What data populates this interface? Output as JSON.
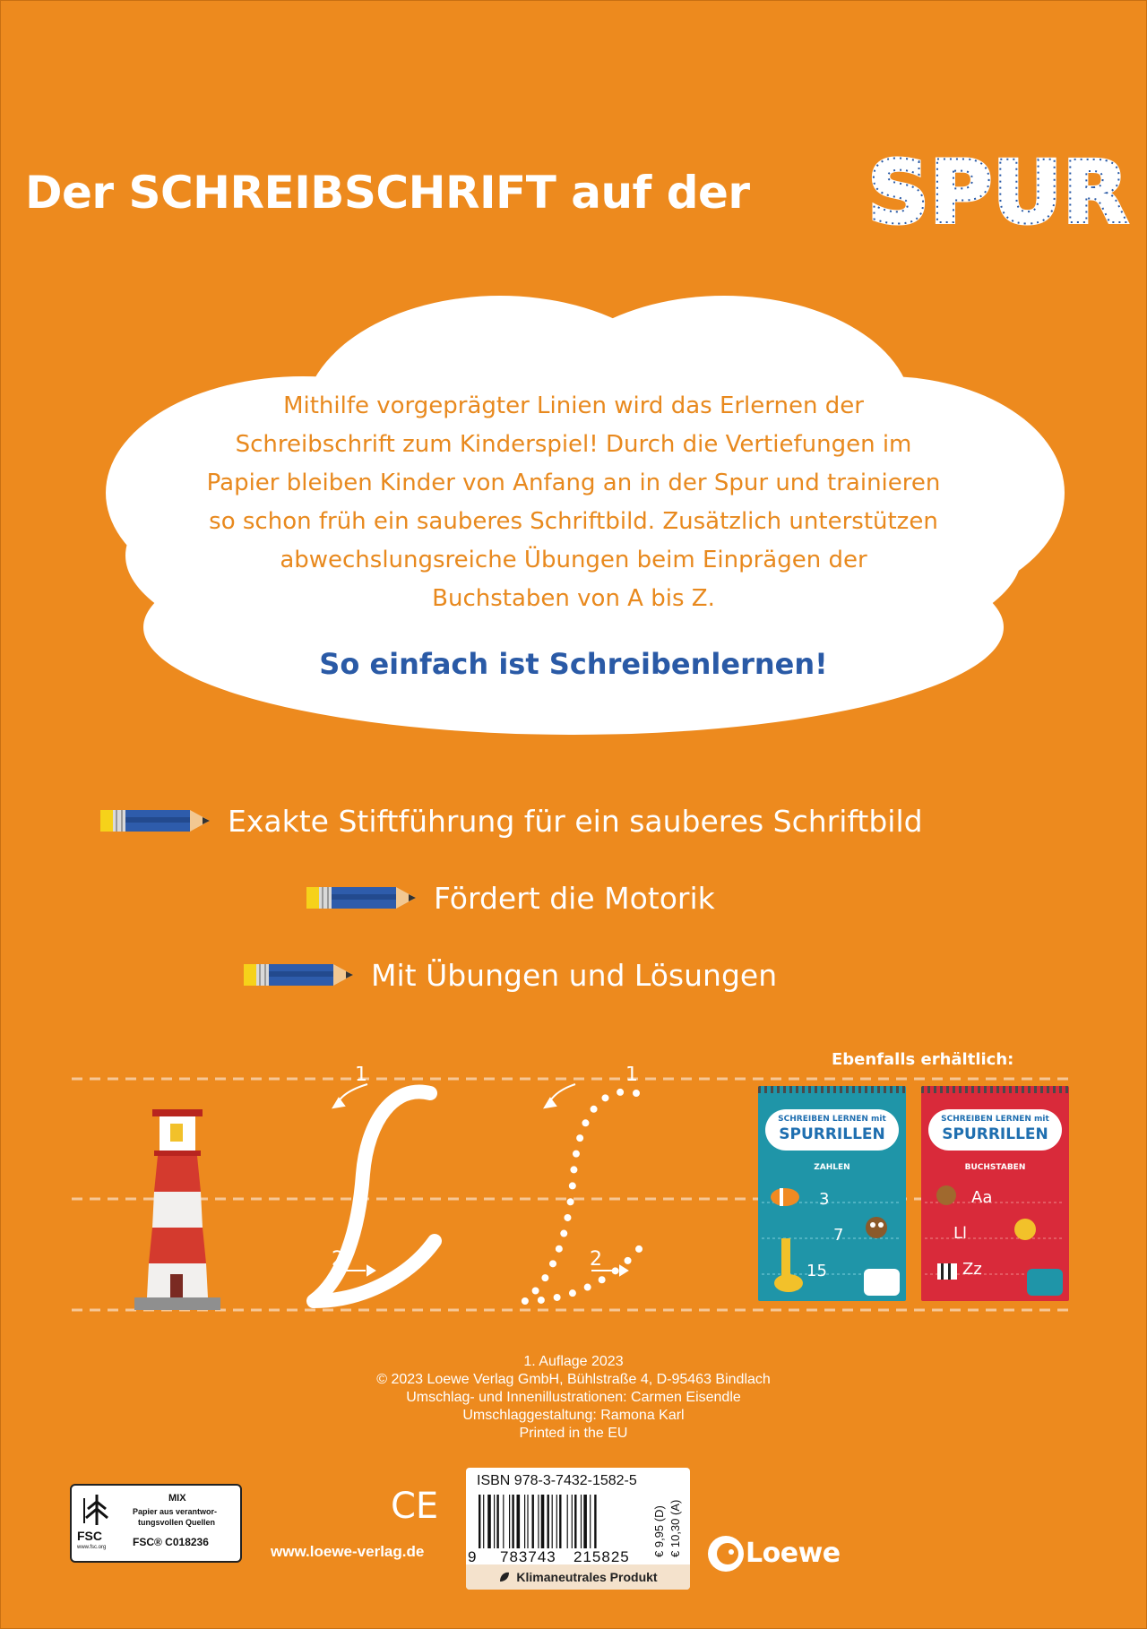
{
  "title": {
    "normal": "Der SCHREIBSCHRIFT auf der",
    "highlight": "SPUR"
  },
  "blurb": {
    "lines": [
      "Mithilfe vorgeprägter Linien wird das Erlernen der",
      "Schreibschrift zum Kinderspiel! Durch die Vertiefungen im",
      "Papier bleiben Kinder von Anfang an in der Spur und trainieren",
      "so schon früh ein sauberes Schriftbild. Zusätzlich unterstützen",
      "abwechslungsreiche Übungen beim Einprägen der",
      "Buchstaben von A bis Z."
    ],
    "tagline": "So einfach ist Schreibenlernen!"
  },
  "features": [
    "Exakte Stiftführung für ein sauberes Schriftbild",
    "Fördert die Motorik",
    "Mit Übungen und Lösungen"
  ],
  "practice": {
    "stroke1": "1",
    "stroke2": "2",
    "stroke1b": "1",
    "stroke2b": "2"
  },
  "also_available": {
    "label": "Ebenfalls erhältlich:",
    "books": [
      {
        "top": "SCHREIBEN LERNEN mit",
        "main": "SPURRILLEN",
        "sub": "ZAHLEN",
        "main_color": "#1f6fb0"
      },
      {
        "top": "SCHREIBEN LERNEN mit",
        "main": "SPURRILLEN",
        "sub": "BUCHSTABEN",
        "main_color": "#1f6fb0"
      }
    ],
    "book1_digits": [
      "3",
      "7",
      "15"
    ],
    "book2_letters": [
      "Aa",
      "Ll",
      "Zz"
    ]
  },
  "imprint": [
    "1. Auflage 2023",
    "© 2023 Loewe Verlag GmbH, Bühlstraße 4, D-95463 Bindlach",
    "Umschlag- und Innenillustrationen: Carmen Eisendle",
    "Umschlaggestaltung: Ramona Karl",
    "Printed in the EU"
  ],
  "fsc": {
    "mix": "MIX",
    "text1": "Papier aus verantwor-",
    "text2": "tungsvollen Quellen",
    "code": "FSC® C018236",
    "abbr": "FSC",
    "url": "www.fsc.org"
  },
  "ce": "CE",
  "website": "www.loewe-verlag.de",
  "isbn": {
    "text": "ISBN 978-3-7432-1582-5",
    "digit_first": "9",
    "digits_left": "783743",
    "digits_right": "215825",
    "price_d": "€ 9,95 (D)",
    "price_a": "€ 10,30 (A)",
    "climate": "Klimaneutrales Produkt"
  },
  "publisher": "Loewe",
  "colors": {
    "background": "#ed8a1e",
    "blue_text": "#2a5aa6",
    "orange_text": "#e8891e"
  }
}
